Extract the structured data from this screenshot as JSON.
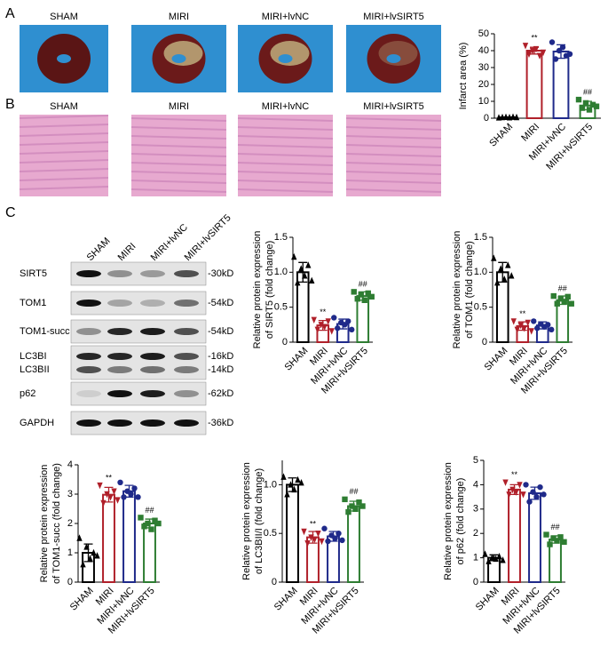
{
  "panel_labels": [
    "A",
    "B",
    "C"
  ],
  "images": {
    "labels": [
      "SHAM",
      "MIRI",
      "MIRI+lvNC",
      "MIRI+lvSIRT5"
    ]
  },
  "blot": {
    "lanes": [
      "SHAM",
      "MIRI",
      "MIRI+lvNC",
      "MIRI+lvSIRT5"
    ],
    "rows": [
      "SIRT5",
      "TOM1",
      "TOM1-succ",
      "LC3BI",
      "LC3BII",
      "p62",
      "GAPDH"
    ],
    "sizes": [
      "-30kD",
      "-54kD",
      "-54kD",
      "-16kD",
      "-14kD",
      "-62kD",
      "-36kD"
    ]
  },
  "chart_data": [
    {
      "type": "bar",
      "ylabel": [
        "Infarct area (%)"
      ],
      "categories": [
        "SHAM",
        "MIRI",
        "MIRI+lvNC",
        "MIRI+lvSIRT5"
      ],
      "values": [
        0.5,
        40,
        39.5,
        7.5
      ],
      "errors": [
        0.2,
        2,
        4,
        2.5
      ],
      "points": [
        [
          0.3,
          0.5,
          0.6,
          0.4,
          0.7,
          0.5
        ],
        [
          43,
          38,
          40,
          41,
          37,
          39
        ],
        [
          45,
          35,
          40,
          42,
          37,
          38
        ],
        [
          11,
          6,
          9,
          5,
          8,
          7
        ]
      ],
      "annotations": [
        null,
        "**",
        null,
        "##"
      ],
      "colors": [
        "#000000",
        "#b0202a",
        "#1f2a8a",
        "#2e7d32"
      ],
      "markers": [
        "triangle-up",
        "triangle-down",
        "circle",
        "square"
      ],
      "ylim": [
        0,
        50
      ],
      "yticks": [
        0,
        10,
        20,
        30,
        40,
        50
      ]
    },
    {
      "type": "bar",
      "ylabel": [
        "Relative protein expression",
        "of SIRT5 (fold change)"
      ],
      "categories": [
        "SHAM",
        "MIRI",
        "MIRI+lvNC",
        "MIRI+lvSIRT5"
      ],
      "values": [
        1.0,
        0.24,
        0.26,
        0.66
      ],
      "errors": [
        0.14,
        0.07,
        0.07,
        0.06
      ],
      "points": [
        [
          1.22,
          0.85,
          1.05,
          0.95,
          1.1,
          0.88
        ],
        [
          0.32,
          0.18,
          0.25,
          0.22,
          0.3,
          0.16
        ],
        [
          0.35,
          0.2,
          0.28,
          0.25,
          0.3,
          0.18
        ],
        [
          0.72,
          0.62,
          0.68,
          0.6,
          0.7,
          0.65
        ]
      ],
      "annotations": [
        null,
        "**",
        null,
        "##"
      ],
      "colors": [
        "#000000",
        "#b0202a",
        "#1f2a8a",
        "#2e7d32"
      ],
      "markers": [
        "triangle-up",
        "triangle-down",
        "circle",
        "square"
      ],
      "ylim": [
        0,
        1.5
      ],
      "yticks": [
        0,
        0.5,
        {
          "value": 1,
          "label": "1.0"
        },
        1.5
      ]
    },
    {
      "type": "bar",
      "ylabel": [
        "Relative protein expression",
        "of TOM1 (fold change)"
      ],
      "categories": [
        "SHAM",
        "MIRI",
        "MIRI+lvNC",
        "MIRI+lvSIRT5"
      ],
      "values": [
        1.0,
        0.23,
        0.24,
        0.6
      ],
      "errors": [
        0.14,
        0.06,
        0.05,
        0.06
      ],
      "points": [
        [
          1.2,
          0.85,
          1.05,
          0.9,
          1.1,
          0.95
        ],
        [
          0.3,
          0.18,
          0.24,
          0.2,
          0.28,
          0.16
        ],
        [
          0.3,
          0.2,
          0.26,
          0.22,
          0.25,
          0.18
        ],
        [
          0.66,
          0.55,
          0.62,
          0.58,
          0.65,
          0.55
        ]
      ],
      "annotations": [
        null,
        "**",
        null,
        "##"
      ],
      "colors": [
        "#000000",
        "#b0202a",
        "#1f2a8a",
        "#2e7d32"
      ],
      "markers": [
        "triangle-up",
        "triangle-down",
        "circle",
        "square"
      ],
      "ylim": [
        0,
        1.5
      ],
      "yticks": [
        0,
        0.5,
        {
          "value": 1,
          "label": "1.0"
        },
        1.5
      ]
    },
    {
      "type": "bar",
      "ylabel": [
        "Relative protein expression",
        "of TOM1-succ (fold change)"
      ],
      "categories": [
        "SHAM",
        "MIRI",
        "MIRI+lvNC",
        "MIRI+lvSIRT5"
      ],
      "values": [
        1.0,
        2.98,
        3.1,
        2.0
      ],
      "errors": [
        0.3,
        0.25,
        0.2,
        0.15
      ],
      "points": [
        [
          1.5,
          0.6,
          1.2,
          0.8,
          1.0,
          0.9
        ],
        [
          3.3,
          2.7,
          3.0,
          2.9,
          3.1,
          2.8
        ],
        [
          3.4,
          2.9,
          3.1,
          3.0,
          3.2,
          2.9
        ],
        [
          2.2,
          1.9,
          2.0,
          1.8,
          2.1,
          2.0
        ]
      ],
      "annotations": [
        null,
        "**",
        null,
        "##"
      ],
      "colors": [
        "#000000",
        "#b0202a",
        "#1f2a8a",
        "#2e7d32"
      ],
      "markers": [
        "triangle-up",
        "triangle-down",
        "circle",
        "square"
      ],
      "ylim": [
        0,
        4
      ],
      "yticks": [
        0,
        1,
        2,
        3,
        4
      ]
    },
    {
      "type": "bar",
      "ylabel": [
        "Relative protein expression",
        "of LC3BII/I (fold change)"
      ],
      "categories": [
        "SHAM",
        "MIRI",
        "MIRI+lvNC",
        "MIRI+lvSIRT5"
      ],
      "values": [
        1.0,
        0.46,
        0.47,
        0.78
      ],
      "errors": [
        0.07,
        0.06,
        0.05,
        0.05
      ],
      "points": [
        [
          1.08,
          0.9,
          1.0,
          0.95,
          1.05,
          1.02
        ],
        [
          0.52,
          0.4,
          0.46,
          0.44,
          0.5,
          0.42
        ],
        [
          0.55,
          0.42,
          0.48,
          0.45,
          0.5,
          0.43
        ],
        [
          0.85,
          0.72,
          0.78,
          0.75,
          0.82,
          0.78
        ]
      ],
      "annotations": [
        null,
        "**",
        null,
        "##"
      ],
      "colors": [
        "#000000",
        "#b0202a",
        "#1f2a8a",
        "#2e7d32"
      ],
      "markers": [
        "triangle-up",
        "triangle-down",
        "circle",
        "square"
      ],
      "ylim": [
        0,
        1.25
      ],
      "yticks": [
        0,
        0.5,
        {
          "value": 1,
          "label": "1.0"
        }
      ]
    },
    {
      "type": "bar",
      "ylabel": [
        "Relative protein expression",
        "of p62 (fold change)"
      ],
      "categories": [
        "SHAM",
        "MIRI",
        "MIRI+lvNC",
        "MIRI+lvSIRT5"
      ],
      "values": [
        1.0,
        3.8,
        3.65,
        1.75
      ],
      "errors": [
        0.12,
        0.2,
        0.25,
        0.15
      ],
      "points": [
        [
          1.15,
          0.85,
          1.0,
          0.95,
          1.05,
          0.9
        ],
        [
          4.1,
          3.6,
          3.8,
          3.7,
          4.0,
          3.6
        ],
        [
          4.0,
          3.3,
          3.7,
          3.5,
          3.9,
          3.6
        ],
        [
          1.95,
          1.55,
          1.8,
          1.7,
          1.85,
          1.65
        ]
      ],
      "annotations": [
        null,
        "**",
        null,
        "##"
      ],
      "colors": [
        "#000000",
        "#b0202a",
        "#1f2a8a",
        "#2e7d32"
      ],
      "markers": [
        "triangle-up",
        "triangle-down",
        "circle",
        "square"
      ],
      "ylim": [
        0,
        5
      ],
      "yticks": [
        0,
        1,
        2,
        3,
        4,
        5
      ]
    }
  ]
}
